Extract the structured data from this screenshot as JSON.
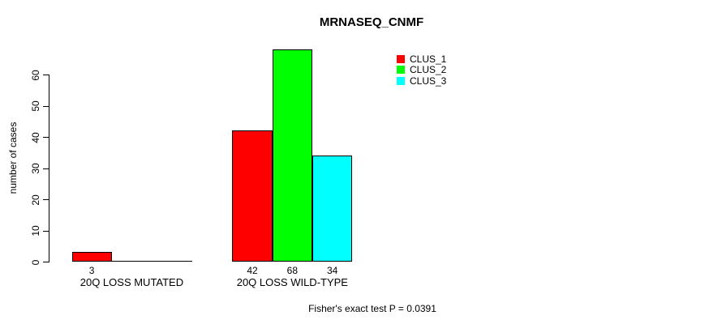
{
  "title": "MRNASEQ_CNMF",
  "chart_data": {
    "type": "bar",
    "grouped": true,
    "title": "MRNASEQ_CNMF",
    "xlabel": "",
    "ylabel": "number of cases",
    "categories": [
      "20Q LOSS MUTATED",
      "20Q LOSS WILD-TYPE"
    ],
    "series": [
      {
        "name": "CLUS_1",
        "color": "#ff0000",
        "values": [
          3,
          42
        ]
      },
      {
        "name": "CLUS_2",
        "color": "#00ff00",
        "values": [
          0,
          68
        ]
      },
      {
        "name": "CLUS_3",
        "color": "#00ffff",
        "values": [
          0,
          34
        ]
      }
    ],
    "bar_value_labels_shown": [
      "3",
      "42",
      "68",
      "34"
    ],
    "yticks": [
      0,
      10,
      20,
      30,
      40,
      50,
      60
    ],
    "ylim": [
      0,
      68
    ],
    "grid": false,
    "bar_outline_color": "#000000",
    "legend_position": "top-right",
    "legend_entries": [
      "CLUS_1",
      "CLUS_2",
      "CLUS_3"
    ],
    "annotation": "Fisher's exact test P = 0.0391"
  }
}
